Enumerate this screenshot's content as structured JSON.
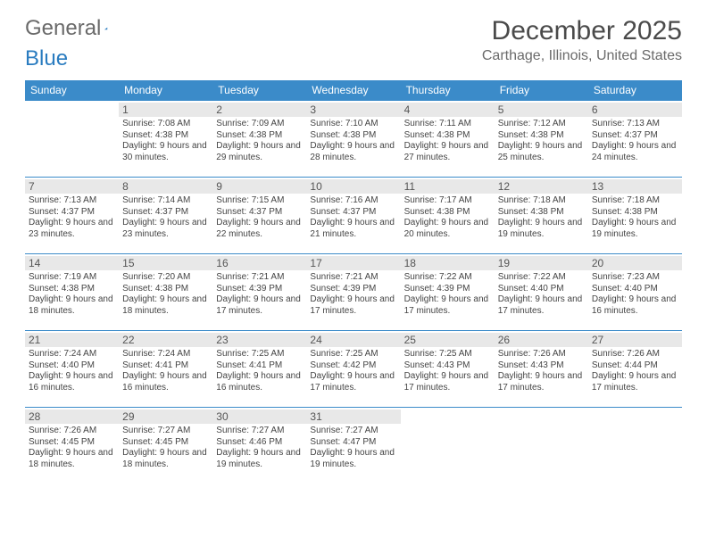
{
  "brand": {
    "part1": "General",
    "part2": "Blue"
  },
  "colors": {
    "header_bg": "#3b8bc9",
    "header_text": "#ffffff",
    "daynum_bg": "#e8e8e8",
    "border": "#3b8bc9",
    "title_color": "#4a4a4a",
    "subtitle_color": "#6a6a6a",
    "text_color": "#444444",
    "page_bg": "#ffffff"
  },
  "title": "December 2025",
  "subtitle": "Carthage, Illinois, United States",
  "weekdays": [
    "Sunday",
    "Monday",
    "Tuesday",
    "Wednesday",
    "Thursday",
    "Friday",
    "Saturday"
  ],
  "weeks": [
    [
      {
        "day": "",
        "sunrise": "",
        "sunset": "",
        "daylight": ""
      },
      {
        "day": "1",
        "sunrise": "Sunrise: 7:08 AM",
        "sunset": "Sunset: 4:38 PM",
        "daylight": "Daylight: 9 hours and 30 minutes."
      },
      {
        "day": "2",
        "sunrise": "Sunrise: 7:09 AM",
        "sunset": "Sunset: 4:38 PM",
        "daylight": "Daylight: 9 hours and 29 minutes."
      },
      {
        "day": "3",
        "sunrise": "Sunrise: 7:10 AM",
        "sunset": "Sunset: 4:38 PM",
        "daylight": "Daylight: 9 hours and 28 minutes."
      },
      {
        "day": "4",
        "sunrise": "Sunrise: 7:11 AM",
        "sunset": "Sunset: 4:38 PM",
        "daylight": "Daylight: 9 hours and 27 minutes."
      },
      {
        "day": "5",
        "sunrise": "Sunrise: 7:12 AM",
        "sunset": "Sunset: 4:38 PM",
        "daylight": "Daylight: 9 hours and 25 minutes."
      },
      {
        "day": "6",
        "sunrise": "Sunrise: 7:13 AM",
        "sunset": "Sunset: 4:37 PM",
        "daylight": "Daylight: 9 hours and 24 minutes."
      }
    ],
    [
      {
        "day": "7",
        "sunrise": "Sunrise: 7:13 AM",
        "sunset": "Sunset: 4:37 PM",
        "daylight": "Daylight: 9 hours and 23 minutes."
      },
      {
        "day": "8",
        "sunrise": "Sunrise: 7:14 AM",
        "sunset": "Sunset: 4:37 PM",
        "daylight": "Daylight: 9 hours and 23 minutes."
      },
      {
        "day": "9",
        "sunrise": "Sunrise: 7:15 AM",
        "sunset": "Sunset: 4:37 PM",
        "daylight": "Daylight: 9 hours and 22 minutes."
      },
      {
        "day": "10",
        "sunrise": "Sunrise: 7:16 AM",
        "sunset": "Sunset: 4:37 PM",
        "daylight": "Daylight: 9 hours and 21 minutes."
      },
      {
        "day": "11",
        "sunrise": "Sunrise: 7:17 AM",
        "sunset": "Sunset: 4:38 PM",
        "daylight": "Daylight: 9 hours and 20 minutes."
      },
      {
        "day": "12",
        "sunrise": "Sunrise: 7:18 AM",
        "sunset": "Sunset: 4:38 PM",
        "daylight": "Daylight: 9 hours and 19 minutes."
      },
      {
        "day": "13",
        "sunrise": "Sunrise: 7:18 AM",
        "sunset": "Sunset: 4:38 PM",
        "daylight": "Daylight: 9 hours and 19 minutes."
      }
    ],
    [
      {
        "day": "14",
        "sunrise": "Sunrise: 7:19 AM",
        "sunset": "Sunset: 4:38 PM",
        "daylight": "Daylight: 9 hours and 18 minutes."
      },
      {
        "day": "15",
        "sunrise": "Sunrise: 7:20 AM",
        "sunset": "Sunset: 4:38 PM",
        "daylight": "Daylight: 9 hours and 18 minutes."
      },
      {
        "day": "16",
        "sunrise": "Sunrise: 7:21 AM",
        "sunset": "Sunset: 4:39 PM",
        "daylight": "Daylight: 9 hours and 17 minutes."
      },
      {
        "day": "17",
        "sunrise": "Sunrise: 7:21 AM",
        "sunset": "Sunset: 4:39 PM",
        "daylight": "Daylight: 9 hours and 17 minutes."
      },
      {
        "day": "18",
        "sunrise": "Sunrise: 7:22 AM",
        "sunset": "Sunset: 4:39 PM",
        "daylight": "Daylight: 9 hours and 17 minutes."
      },
      {
        "day": "19",
        "sunrise": "Sunrise: 7:22 AM",
        "sunset": "Sunset: 4:40 PM",
        "daylight": "Daylight: 9 hours and 17 minutes."
      },
      {
        "day": "20",
        "sunrise": "Sunrise: 7:23 AM",
        "sunset": "Sunset: 4:40 PM",
        "daylight": "Daylight: 9 hours and 16 minutes."
      }
    ],
    [
      {
        "day": "21",
        "sunrise": "Sunrise: 7:24 AM",
        "sunset": "Sunset: 4:40 PM",
        "daylight": "Daylight: 9 hours and 16 minutes."
      },
      {
        "day": "22",
        "sunrise": "Sunrise: 7:24 AM",
        "sunset": "Sunset: 4:41 PM",
        "daylight": "Daylight: 9 hours and 16 minutes."
      },
      {
        "day": "23",
        "sunrise": "Sunrise: 7:25 AM",
        "sunset": "Sunset: 4:41 PM",
        "daylight": "Daylight: 9 hours and 16 minutes."
      },
      {
        "day": "24",
        "sunrise": "Sunrise: 7:25 AM",
        "sunset": "Sunset: 4:42 PM",
        "daylight": "Daylight: 9 hours and 17 minutes."
      },
      {
        "day": "25",
        "sunrise": "Sunrise: 7:25 AM",
        "sunset": "Sunset: 4:43 PM",
        "daylight": "Daylight: 9 hours and 17 minutes."
      },
      {
        "day": "26",
        "sunrise": "Sunrise: 7:26 AM",
        "sunset": "Sunset: 4:43 PM",
        "daylight": "Daylight: 9 hours and 17 minutes."
      },
      {
        "day": "27",
        "sunrise": "Sunrise: 7:26 AM",
        "sunset": "Sunset: 4:44 PM",
        "daylight": "Daylight: 9 hours and 17 minutes."
      }
    ],
    [
      {
        "day": "28",
        "sunrise": "Sunrise: 7:26 AM",
        "sunset": "Sunset: 4:45 PM",
        "daylight": "Daylight: 9 hours and 18 minutes."
      },
      {
        "day": "29",
        "sunrise": "Sunrise: 7:27 AM",
        "sunset": "Sunset: 4:45 PM",
        "daylight": "Daylight: 9 hours and 18 minutes."
      },
      {
        "day": "30",
        "sunrise": "Sunrise: 7:27 AM",
        "sunset": "Sunset: 4:46 PM",
        "daylight": "Daylight: 9 hours and 19 minutes."
      },
      {
        "day": "31",
        "sunrise": "Sunrise: 7:27 AM",
        "sunset": "Sunset: 4:47 PM",
        "daylight": "Daylight: 9 hours and 19 minutes."
      },
      {
        "day": "",
        "sunrise": "",
        "sunset": "",
        "daylight": ""
      },
      {
        "day": "",
        "sunrise": "",
        "sunset": "",
        "daylight": ""
      },
      {
        "day": "",
        "sunrise": "",
        "sunset": "",
        "daylight": ""
      }
    ]
  ]
}
